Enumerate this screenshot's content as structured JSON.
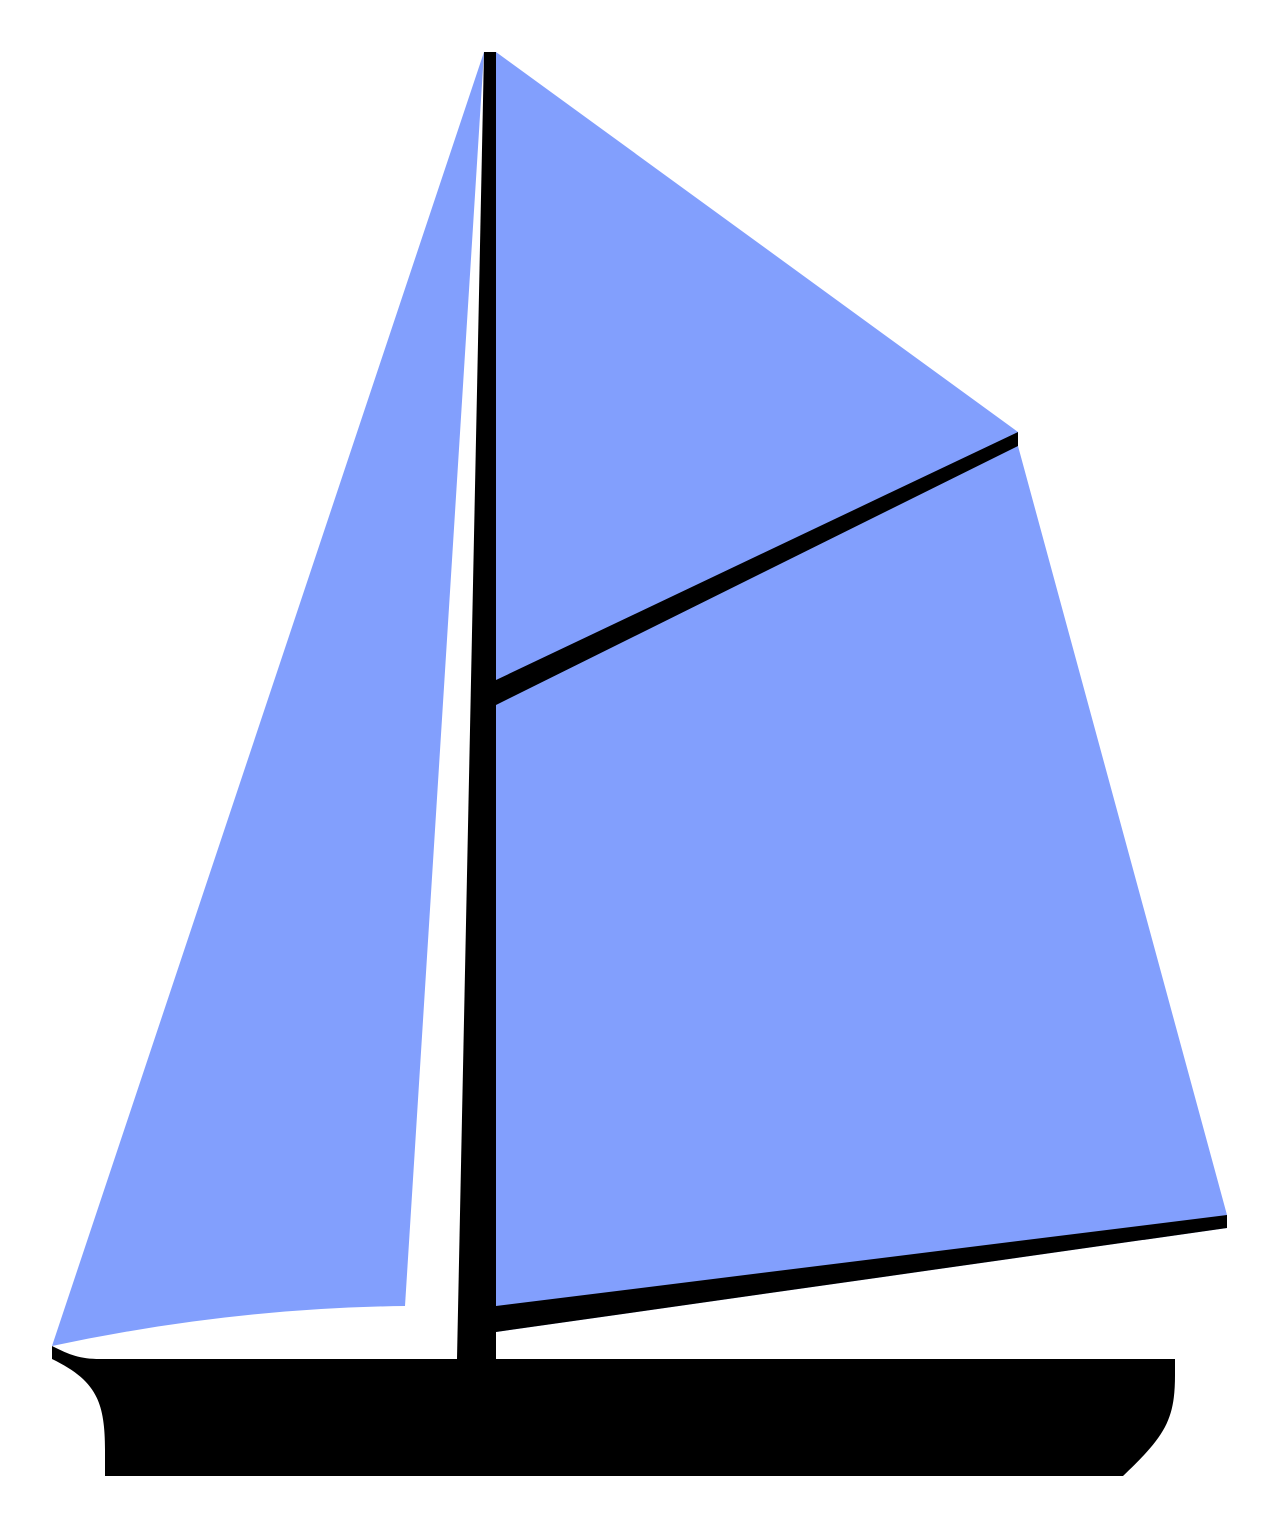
{
  "colors": {
    "background": "#ffffff",
    "sail": "#829ffd",
    "spar": "#000000",
    "hull": "#000000"
  },
  "parts": [
    {
      "name": "jib-sail",
      "color_key": "sail"
    },
    {
      "name": "mainsail",
      "color_key": "sail"
    },
    {
      "name": "mast",
      "color_key": "spar"
    },
    {
      "name": "gaff",
      "color_key": "spar"
    },
    {
      "name": "boom",
      "color_key": "spar"
    },
    {
      "name": "hull",
      "color_key": "hull"
    }
  ]
}
